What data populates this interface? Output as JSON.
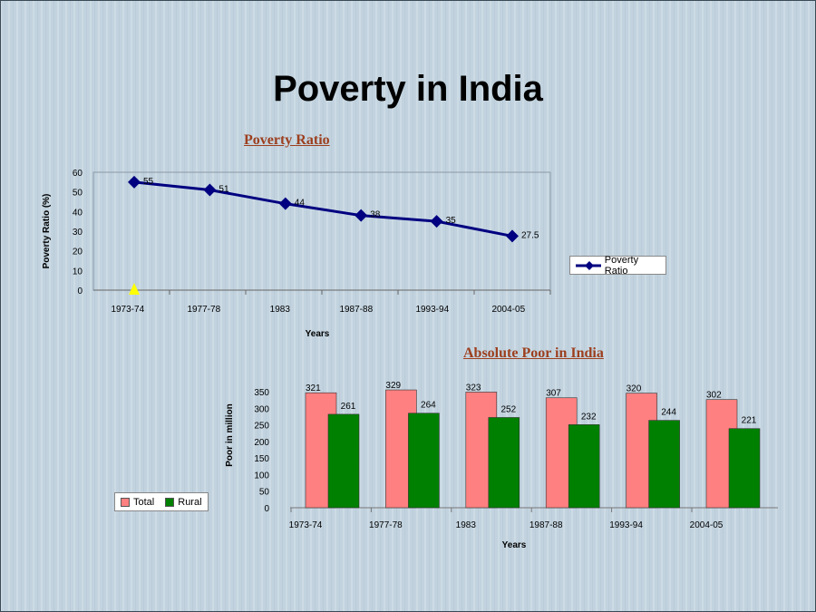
{
  "title": "Poverty in India",
  "chart_data": [
    {
      "type": "line",
      "title": "Poverty Ratio",
      "xlabel": "Years",
      "ylabel": "Poverty Ratio (%)",
      "categories": [
        "1973-74",
        "1977-78",
        "1983",
        "1987-88",
        "1993-94",
        "2004-05"
      ],
      "series": [
        {
          "name": "Poverty Ratio",
          "values": [
            55,
            51,
            44,
            38,
            35,
            27.5
          ],
          "color": "#000080"
        }
      ],
      "data_labels": [
        "55",
        "51",
        "44",
        "38",
        "35",
        "27.5"
      ],
      "ylim": [
        0,
        60
      ],
      "yticks": [
        0,
        10,
        20,
        30,
        40,
        50,
        60
      ],
      "grid": false,
      "legend": "right",
      "marker": "diamond"
    },
    {
      "type": "bar",
      "title": "Absolute Poor in India",
      "xlabel": "Years",
      "ylabel": "Poor in million",
      "categories": [
        "1973-74",
        "1977-78",
        "1983",
        "1987-88",
        "1993-94",
        "2004-05"
      ],
      "series": [
        {
          "name": "Total",
          "values": [
            321,
            329,
            323,
            307,
            320,
            302
          ],
          "color": "#ff8080"
        },
        {
          "name": "Rural",
          "values": [
            261,
            264,
            252,
            232,
            244,
            221
          ],
          "color": "#008000"
        }
      ],
      "ylim": [
        0,
        350
      ],
      "yticks": [
        0,
        50,
        100,
        150,
        200,
        250,
        300,
        350
      ],
      "grid": false,
      "legend": "left"
    }
  ]
}
